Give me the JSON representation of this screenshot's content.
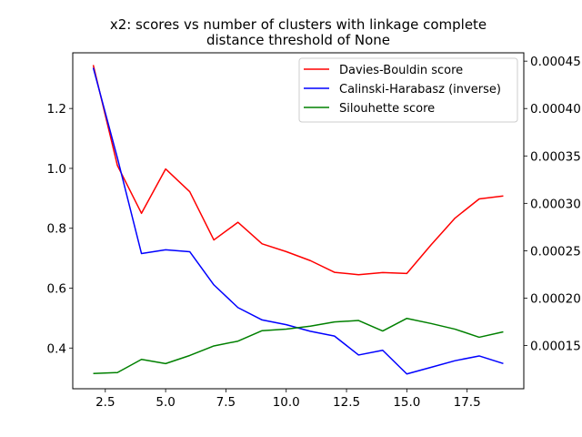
{
  "chart_data": {
    "type": "line",
    "title_lines": [
      "x2: scores vs number of clusters with linkage complete",
      "distance threshold of None"
    ],
    "xlabel": "",
    "ylabel": "",
    "y2label": "",
    "xlim": [
      1.15,
      19.85
    ],
    "ylim": [
      0.264,
      1.386
    ],
    "y2lim": [
      0.0001044,
      0.0004588
    ],
    "x_ticks": [
      2.5,
      5.0,
      7.5,
      10.0,
      12.5,
      15.0,
      17.5
    ],
    "x_tick_labels": [
      "2.5",
      "5.0",
      "7.5",
      "10.0",
      "12.5",
      "15.0",
      "17.5"
    ],
    "y_ticks": [
      0.4,
      0.6,
      0.8,
      1.0,
      1.2
    ],
    "y_tick_labels": [
      "0.4",
      "0.6",
      "0.8",
      "1.0",
      "1.2"
    ],
    "y2_ticks": [
      0.00015,
      0.0002,
      0.00025,
      0.0003,
      0.00035,
      0.0004,
      0.00045
    ],
    "y2_tick_labels": [
      "0.00015",
      "0.00020",
      "0.00025",
      "0.00030",
      "0.00035",
      "0.00040",
      "0.00045"
    ],
    "grid": false,
    "legend_position": "upper right",
    "x": [
      2,
      3,
      4,
      5,
      6,
      7,
      8,
      9,
      10,
      11,
      12,
      13,
      14,
      15,
      16,
      17,
      18,
      19
    ],
    "series": [
      {
        "name": "Davies-Bouldin score",
        "color": "#ff0000",
        "axis": "left",
        "values": [
          1.345,
          1.01,
          0.85,
          0.998,
          0.922,
          0.761,
          0.82,
          0.748,
          0.722,
          0.692,
          0.653,
          0.645,
          0.652,
          0.649,
          0.744,
          0.834,
          0.898,
          0.908
        ]
      },
      {
        "name": "Calinski-Harabasz (inverse)",
        "color": "#0000ff",
        "axis": "right",
        "values": [
          0.000443,
          0.000348,
          0.000247,
          0.000251,
          0.000249,
          0.000214,
          0.00019,
          0.000177,
          0.000172,
          0.000165,
          0.00016,
          0.00014,
          0.000145,
          0.00012,
          0.000127,
          0.000134,
          0.000139,
          0.000131
        ]
      },
      {
        "name": "Silouhette score",
        "color": "#008000",
        "axis": "left",
        "values": [
          0.315,
          0.318,
          0.362,
          0.348,
          0.375,
          0.407,
          0.423,
          0.458,
          0.463,
          0.473,
          0.487,
          0.492,
          0.457,
          0.499,
          0.482,
          0.463,
          0.436,
          0.454
        ]
      }
    ]
  }
}
